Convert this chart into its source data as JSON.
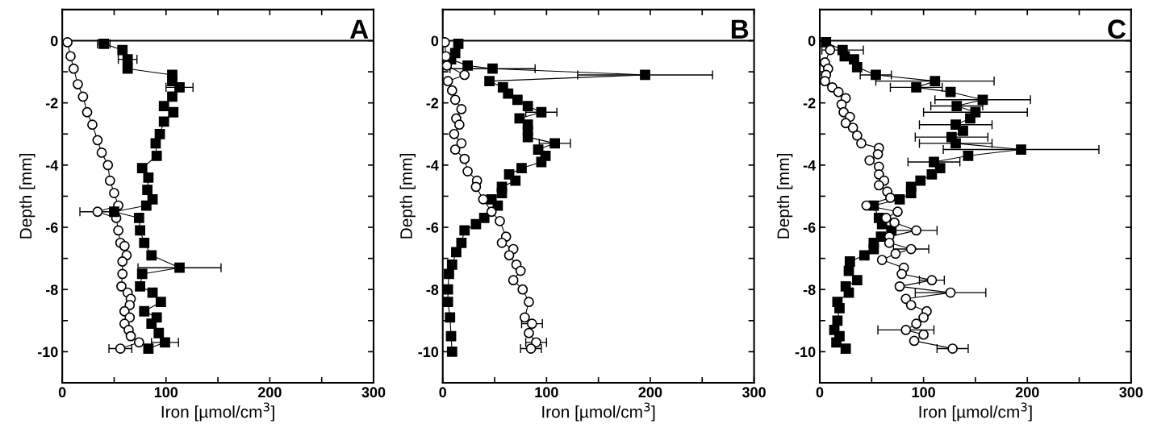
{
  "chart_data": [
    {
      "type": "line",
      "xlabel": "Iron [µmol/cm$^{3}$]",
      "ylabel": "Depth [mm]",
      "annotations": [
        "A"
      ],
      "xlim": [
        0,
        300
      ],
      "ylim": [
        -11,
        1
      ],
      "xticks": [
        0,
        {
          "value": 50,
          "label": null
        },
        100,
        {
          "value": 150,
          "label": null
        },
        200,
        {
          "value": 250,
          "label": null
        },
        300
      ],
      "yticks": [
        -10,
        {
          "value": -9,
          "label": null
        },
        -8,
        {
          "value": -7,
          "label": null
        },
        -6,
        {
          "value": -5,
          "label": null
        },
        -4,
        {
          "value": -3,
          "label": null
        },
        -2,
        {
          "value": -1,
          "label": null
        },
        0
      ],
      "ref_lines": [
        {
          "axis": "y",
          "value": 0,
          "color": "#000000",
          "line_style": "solid"
        }
      ],
      "line_style": "solid",
      "series": [
        {
          "color": "#000000",
          "marker": "circle",
          "x": [
            5,
            8,
            11,
            15,
            20,
            24,
            29,
            34,
            38,
            44,
            46,
            50,
            54,
            34,
            52,
            54,
            56,
            60,
            62,
            58,
            58,
            57,
            63,
            66,
            65,
            60,
            65,
            60,
            64,
            66,
            74,
            56
          ],
          "values": [
            -0.05,
            -0.5,
            -0.9,
            -1.4,
            -1.8,
            -2.3,
            -2.7,
            -3.2,
            -3.6,
            -4.0,
            -4.5,
            -4.9,
            -5.3,
            -5.5,
            -5.7,
            -6.1,
            -6.5,
            -6.6,
            -6.9,
            -7.1,
            -7.5,
            -7.9,
            -8.1,
            -8.3,
            -8.5,
            -8.7,
            -8.9,
            -9.1,
            -9.3,
            -9.5,
            -9.7,
            -9.9
          ],
          "xerrors": [
            null,
            null,
            null,
            null,
            null,
            null,
            null,
            null,
            null,
            null,
            null,
            null,
            null,
            17,
            null,
            null,
            null,
            null,
            null,
            null,
            null,
            null,
            null,
            null,
            null,
            null,
            null,
            null,
            null,
            null,
            null,
            11
          ]
        },
        {
          "color": "#000000",
          "marker": "square",
          "x": [
            40,
            58,
            63,
            63,
            106,
            106,
            113,
            106,
            98,
            107,
            98,
            94,
            90,
            91,
            77,
            83,
            82,
            87,
            81,
            50,
            74,
            75,
            79,
            86,
            113,
            77,
            75,
            87,
            95,
            79,
            91,
            86,
            93,
            99,
            83
          ],
          "values": [
            -0.1,
            -0.3,
            -0.6,
            -0.9,
            -1.1,
            -1.3,
            -1.5,
            -1.8,
            -2.1,
            -2.3,
            -2.6,
            -3.0,
            -3.3,
            -3.7,
            -4.1,
            -4.4,
            -4.8,
            -5.1,
            -5.3,
            -5.5,
            -5.7,
            -6.1,
            -6.5,
            -6.9,
            -7.3,
            -7.5,
            -7.9,
            -8.1,
            -8.4,
            -8.7,
            -8.9,
            -9.1,
            -9.4,
            -9.7,
            -9.9
          ],
          "xerrors": [
            6,
            null,
            9,
            null,
            null,
            null,
            13,
            null,
            null,
            null,
            null,
            null,
            null,
            null,
            null,
            null,
            null,
            null,
            null,
            null,
            null,
            null,
            null,
            null,
            40,
            null,
            null,
            null,
            null,
            null,
            null,
            null,
            null,
            13,
            null
          ]
        }
      ]
    },
    {
      "type": "line",
      "xlabel": "Iron [µmol/cm$^{3}$]",
      "ylabel": "Depth [mm]",
      "annotations": [
        "B"
      ],
      "xlim": [
        0,
        300
      ],
      "ylim": [
        -11,
        1
      ],
      "xticks": [
        0,
        {
          "value": 50,
          "label": null
        },
        100,
        {
          "value": 150,
          "label": null
        },
        200,
        {
          "value": 250,
          "label": null
        },
        300
      ],
      "yticks": [
        -10,
        {
          "value": -9,
          "label": null
        },
        -8,
        {
          "value": -7,
          "label": null
        },
        -6,
        {
          "value": -5,
          "label": null
        },
        -4,
        {
          "value": -3,
          "label": null
        },
        -2,
        {
          "value": -1,
          "label": null
        },
        0
      ],
      "ref_lines": [
        {
          "axis": "y",
          "value": 0,
          "color": "#000000",
          "line_style": "solid"
        }
      ],
      "line_style": "solid",
      "series": [
        {
          "color": "#000000",
          "marker": "square",
          "x": [
            15,
            12,
            8,
            24,
            48,
            195,
            45,
            58,
            63,
            72,
            82,
            95,
            74,
            82,
            82,
            82,
            108,
            92,
            99,
            95,
            76,
            64,
            70,
            57,
            57,
            47,
            53,
            40,
            32,
            21,
            18,
            13,
            9,
            6,
            5,
            5,
            7,
            8,
            9
          ],
          "values": [
            -0.1,
            -0.4,
            -0.6,
            -0.8,
            -0.9,
            -1.1,
            -1.3,
            -1.5,
            -1.7,
            -1.9,
            -2.1,
            -2.3,
            -2.5,
            -2.7,
            -2.9,
            -3.1,
            -3.3,
            -3.5,
            -3.7,
            -3.9,
            -4.1,
            -4.3,
            -4.5,
            -4.7,
            -4.9,
            -5.1,
            -5.3,
            -5.7,
            -5.9,
            -6.1,
            -6.5,
            -6.8,
            -7.2,
            -7.5,
            -8.0,
            -8.4,
            -8.9,
            -9.5,
            -10.0
          ],
          "xerrors": [
            null,
            null,
            null,
            null,
            41,
            65,
            null,
            null,
            null,
            null,
            null,
            15,
            null,
            null,
            null,
            null,
            15,
            null,
            null,
            null,
            null,
            null,
            null,
            null,
            null,
            null,
            null,
            null,
            null,
            null,
            null,
            null,
            null,
            null,
            null,
            null,
            null,
            null,
            null
          ]
        },
        {
          "color": "#000000",
          "marker": "circle",
          "x": [
            2,
            3,
            4,
            21,
            5,
            9,
            12,
            18,
            13,
            16,
            11,
            18,
            12,
            21,
            24,
            33,
            32,
            39,
            47,
            55,
            61,
            57,
            68,
            64,
            71,
            75,
            68,
            77,
            83,
            79,
            86,
            83,
            90,
            85
          ],
          "values": [
            -0.05,
            -0.5,
            -0.8,
            -1.1,
            -1.3,
            -1.6,
            -1.9,
            -2.2,
            -2.5,
            -2.7,
            -3.0,
            -3.3,
            -3.5,
            -3.8,
            -4.2,
            -4.5,
            -4.7,
            -5.1,
            -5.5,
            -5.8,
            -6.3,
            -6.5,
            -6.7,
            -6.9,
            -7.2,
            -7.4,
            -7.7,
            -8.0,
            -8.4,
            -8.9,
            -9.1,
            -9.4,
            -9.7,
            -9.9
          ],
          "xerrors": [
            null,
            null,
            null,
            null,
            null,
            null,
            null,
            null,
            null,
            null,
            null,
            null,
            null,
            null,
            null,
            null,
            null,
            null,
            null,
            null,
            null,
            null,
            null,
            null,
            null,
            null,
            null,
            null,
            null,
            null,
            10,
            null,
            10,
            10
          ]
        }
      ]
    },
    {
      "type": "line",
      "xlabel": "Iron [µmol/cm$^{3}$]",
      "ylabel": "Depth [mm]",
      "annotations": [
        "C"
      ],
      "xlim": [
        0,
        300
      ],
      "ylim": [
        -11,
        1
      ],
      "xticks": [
        0,
        {
          "value": 50,
          "label": null
        },
        100,
        {
          "value": 150,
          "label": null
        },
        200,
        {
          "value": 250,
          "label": null
        },
        300
      ],
      "yticks": [
        -10,
        {
          "value": -9,
          "label": null
        },
        -8,
        {
          "value": -7,
          "label": null
        },
        -6,
        {
          "value": -5,
          "label": null
        },
        -4,
        {
          "value": -3,
          "label": null
        },
        -2,
        {
          "value": -1,
          "label": null
        },
        0
      ],
      "ref_lines": [
        {
          "axis": "y",
          "value": 0,
          "color": "#000000",
          "line_style": "solid"
        }
      ],
      "line_style": "solid",
      "series": [
        {
          "color": "#000000",
          "marker": "square",
          "x": [
            6,
            22,
            24,
            33,
            36,
            54,
            111,
            93,
            126,
            157,
            132,
            150,
            145,
            131,
            138,
            127,
            131,
            194,
            143,
            110,
            116,
            108,
            97,
            88,
            88,
            77,
            52,
            57,
            60,
            69,
            59,
            52,
            52,
            43,
            29,
            28,
            36,
            25,
            28,
            17,
            19,
            17,
            14,
            19,
            16,
            25
          ],
          "values": [
            -0.05,
            -0.3,
            -0.5,
            -0.6,
            -0.85,
            -1.1,
            -1.3,
            -1.5,
            -1.65,
            -1.9,
            -2.1,
            -2.3,
            -2.5,
            -2.7,
            -2.9,
            -3.1,
            -3.3,
            -3.5,
            -3.7,
            -3.9,
            -4.1,
            -4.3,
            -4.5,
            -4.7,
            -4.9,
            -5.1,
            -5.3,
            -5.7,
            -5.9,
            -6.1,
            -6.3,
            -6.5,
            -6.7,
            -6.9,
            -7.1,
            -7.4,
            -7.7,
            -7.9,
            -8.1,
            -8.4,
            -8.6,
            -9.0,
            -9.3,
            -9.5,
            -9.7,
            -9.9
          ],
          "xerrors": [
            null,
            20,
            null,
            null,
            null,
            15,
            57,
            25,
            null,
            46,
            25,
            50,
            null,
            35,
            null,
            35,
            35,
            75,
            null,
            25,
            null,
            null,
            null,
            null,
            null,
            null,
            null,
            null,
            null,
            null,
            null,
            null,
            null,
            null,
            null,
            null,
            null,
            null,
            null,
            null,
            null,
            null,
            null,
            null,
            null,
            null
          ]
        },
        {
          "color": "#000000",
          "marker": "circle",
          "x": [
            10,
            5,
            8,
            6,
            5,
            12,
            18,
            25,
            21,
            23,
            29,
            25,
            32,
            36,
            40,
            57,
            56,
            48,
            57,
            57,
            62,
            57,
            65,
            68,
            45,
            75,
            64,
            72,
            93,
            67,
            67,
            88,
            73,
            60,
            81,
            79,
            108,
            77,
            126,
            83,
            88,
            103,
            100,
            93,
            83,
            100,
            91,
            128
          ],
          "values": [
            -0.3,
            -0.7,
            -0.9,
            -1.1,
            -1.3,
            -1.5,
            -1.65,
            -1.85,
            -2.05,
            -2.3,
            -2.45,
            -2.65,
            -2.8,
            -3.05,
            -3.3,
            -3.45,
            -3.65,
            -3.85,
            -4.05,
            -4.3,
            -4.5,
            -4.65,
            -4.85,
            -5.05,
            -5.3,
            -5.5,
            -5.7,
            -5.85,
            -6.1,
            -6.3,
            -6.5,
            -6.7,
            -6.85,
            -7.05,
            -7.3,
            -7.5,
            -7.7,
            -7.9,
            -8.1,
            -8.3,
            -8.5,
            -8.7,
            -8.9,
            -9.1,
            -9.3,
            -9.45,
            -9.65,
            -9.9
          ],
          "xerrors": [
            null,
            null,
            null,
            null,
            null,
            null,
            null,
            null,
            null,
            null,
            null,
            null,
            null,
            null,
            null,
            null,
            null,
            null,
            null,
            null,
            null,
            null,
            null,
            null,
            null,
            null,
            null,
            null,
            20,
            null,
            null,
            17,
            null,
            null,
            null,
            null,
            12,
            null,
            34,
            null,
            null,
            null,
            null,
            null,
            27,
            null,
            null,
            15
          ]
        }
      ]
    }
  ]
}
